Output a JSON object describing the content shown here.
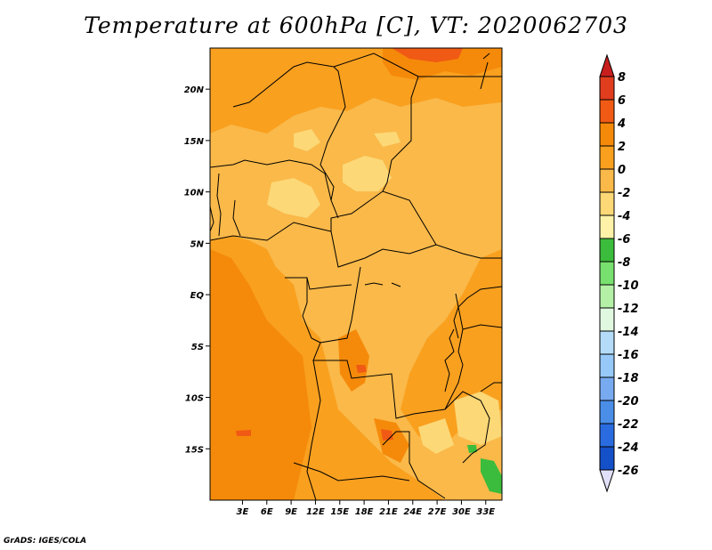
{
  "title": "Temperature at 600hPa [C], VT: 2020062703",
  "credit": "GrADS: IGES/COLA",
  "map": {
    "region": "Central Africa",
    "lat_range": [
      -20,
      24
    ],
    "lon_range": [
      -1,
      35
    ],
    "lat_labels": [
      {
        "lat": 20,
        "text": "20N"
      },
      {
        "lat": 15,
        "text": "15N"
      },
      {
        "lat": 10,
        "text": "10N"
      },
      {
        "lat": 5,
        "text": "5N"
      },
      {
        "lat": 0,
        "text": "EQ"
      },
      {
        "lat": -5,
        "text": "5S"
      },
      {
        "lat": -10,
        "text": "10S"
      },
      {
        "lat": -15,
        "text": "15S"
      }
    ],
    "lon_labels": [
      {
        "lon": 3,
        "text": "3E"
      },
      {
        "lon": 6,
        "text": "6E"
      },
      {
        "lon": 9,
        "text": "9E"
      },
      {
        "lon": 12,
        "text": "12E"
      },
      {
        "lon": 15,
        "text": "15E"
      },
      {
        "lon": 18,
        "text": "18E"
      },
      {
        "lon": 21,
        "text": "21E"
      },
      {
        "lon": 24,
        "text": "24E"
      },
      {
        "lon": 27,
        "text": "27E"
      },
      {
        "lon": 30,
        "text": "30E"
      },
      {
        "lon": 33,
        "text": "33E"
      }
    ]
  },
  "colorbar": {
    "levels": [
      {
        "value": 8,
        "label": "8",
        "color": "#e03c1e"
      },
      {
        "value": 6,
        "label": "6",
        "color": "#f05a14"
      },
      {
        "value": 4,
        "label": "4",
        "color": "#f58a0a"
      },
      {
        "value": 2,
        "label": "2",
        "color": "#f9a01f"
      },
      {
        "value": 0,
        "label": "0",
        "color": "#fab949"
      },
      {
        "value": -2,
        "label": "-2",
        "color": "#fcd877"
      },
      {
        "value": -4,
        "label": "-4",
        "color": "#fdf2a8"
      },
      {
        "value": -6,
        "label": "-6",
        "color": "#3cbc3c"
      },
      {
        "value": -8,
        "label": "-8",
        "color": "#78e06e"
      },
      {
        "value": -10,
        "label": "-10",
        "color": "#b4f0a6"
      },
      {
        "value": -12,
        "label": "-12",
        "color": "#e0f8e0"
      },
      {
        "value": -14,
        "label": "-14",
        "color": "#b4dcf8"
      },
      {
        "value": -16,
        "label": "-16",
        "color": "#96c8f8"
      },
      {
        "value": -18,
        "label": "-18",
        "color": "#78aaf0"
      },
      {
        "value": -20,
        "label": "-20",
        "color": "#4a8ee8"
      },
      {
        "value": -22,
        "label": "-22",
        "color": "#2a6ce0"
      },
      {
        "value": -24,
        "label": "-24",
        "color": "#1450c8"
      },
      {
        "value": -26,
        "label": "-26",
        "color": "#0c2890"
      }
    ],
    "top_arrow_color": "#c81e1e",
    "bottom_arrow_color": "#e0e0f8"
  }
}
